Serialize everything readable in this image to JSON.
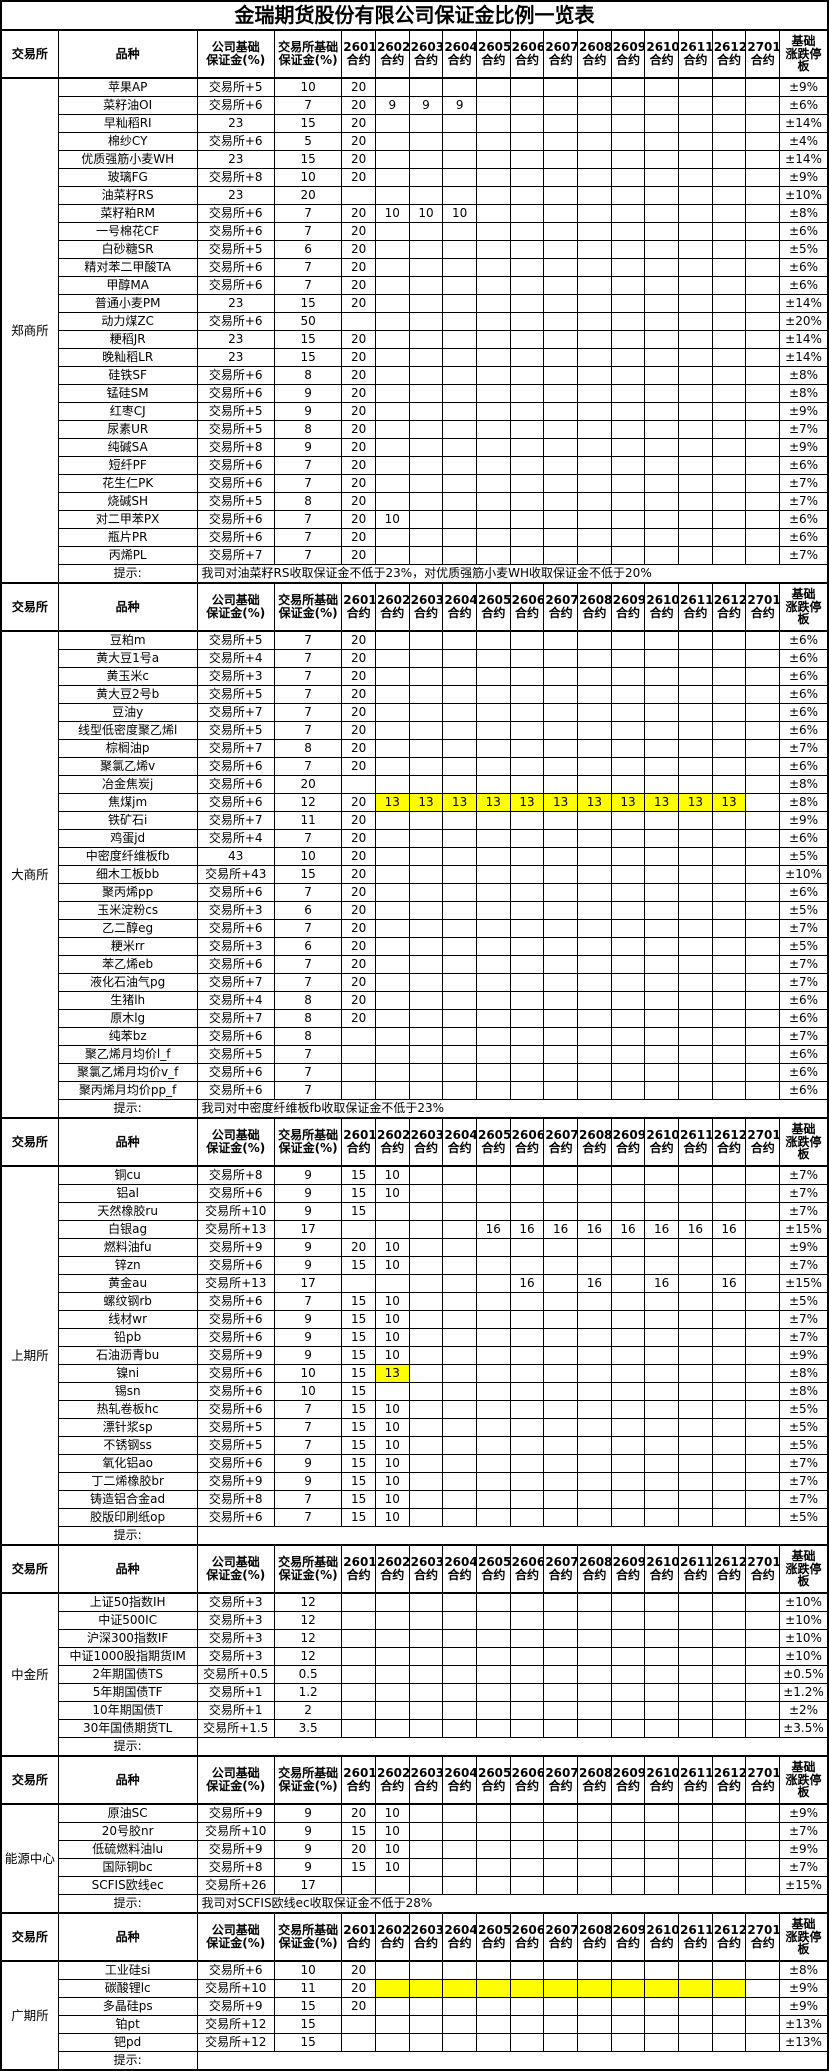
{
  "title": "金瑞期货股份有限公司保证金比例一览表",
  "notice_label": "提示:",
  "colors": {
    "highlight": "#FFFF00",
    "border": "#000000",
    "background": "#FFFFFF"
  },
  "header": {
    "exchange_label": "交易所",
    "product_label": "品种",
    "company_label": "公司基础\n保证金(%)",
    "exchange_base_label": "交易所基础\n保证金(%)",
    "contract_suffix": "合约",
    "limit_label": "基础\n涨跌停板"
  },
  "contracts": [
    "2601",
    "2602",
    "2603",
    "2604",
    "2605",
    "2606",
    "2607",
    "2608",
    "2609",
    "2610",
    "2611",
    "2612",
    "2701"
  ],
  "sections": [
    {
      "exchange": "郑商所",
      "rows": [
        {
          "product": "苹果AP",
          "company": "交易所+5",
          "base": "10",
          "cells": [
            "20"
          ],
          "limit": "±9%"
        },
        {
          "product": "菜籽油OI",
          "company": "交易所+6",
          "base": "7",
          "cells": [
            "20",
            "9",
            "9",
            "9"
          ],
          "limit": "±6%"
        },
        {
          "product": "早籼稻RI",
          "company": "23",
          "base": "15",
          "cells": [
            "20"
          ],
          "limit": "±14%"
        },
        {
          "product": "棉纱CY",
          "company": "交易所+6",
          "base": "5",
          "cells": [
            "20"
          ],
          "limit": "±4%"
        },
        {
          "product": "优质强筋小麦WH",
          "company": "23",
          "base": "15",
          "cells": [
            "20"
          ],
          "limit": "±14%"
        },
        {
          "product": "玻璃FG",
          "company": "交易所+8",
          "base": "10",
          "cells": [
            "20"
          ],
          "limit": "±9%"
        },
        {
          "product": "油菜籽RS",
          "company": "23",
          "base": "20",
          "cells": [],
          "limit": "±10%"
        },
        {
          "product": "菜籽粕RM",
          "company": "交易所+6",
          "base": "7",
          "cells": [
            "20",
            "10",
            "10",
            "10"
          ],
          "limit": "±8%"
        },
        {
          "product": "一号棉花CF",
          "company": "交易所+6",
          "base": "7",
          "cells": [
            "20"
          ],
          "limit": "±6%"
        },
        {
          "product": "白砂糖SR",
          "company": "交易所+5",
          "base": "6",
          "cells": [
            "20"
          ],
          "limit": "±5%"
        },
        {
          "product": "精对苯二甲酸TA",
          "company": "交易所+6",
          "base": "7",
          "cells": [
            "20"
          ],
          "limit": "±6%"
        },
        {
          "product": "甲醇MA",
          "company": "交易所+6",
          "base": "7",
          "cells": [
            "20"
          ],
          "limit": "±6%"
        },
        {
          "product": "普通小麦PM",
          "company": "23",
          "base": "15",
          "cells": [
            "20"
          ],
          "limit": "±14%"
        },
        {
          "product": "动力煤ZC",
          "company": "交易所+6",
          "base": "50",
          "cells": [],
          "limit": "±20%"
        },
        {
          "product": "粳稻JR",
          "company": "23",
          "base": "15",
          "cells": [
            "20"
          ],
          "limit": "±14%"
        },
        {
          "product": "晚籼稻LR",
          "company": "23",
          "base": "15",
          "cells": [
            "20"
          ],
          "limit": "±14%"
        },
        {
          "product": "硅铁SF",
          "company": "交易所+6",
          "base": "8",
          "cells": [
            "20"
          ],
          "limit": "±8%"
        },
        {
          "product": "锰硅SM",
          "company": "交易所+6",
          "base": "9",
          "cells": [
            "20"
          ],
          "limit": "±8%"
        },
        {
          "product": "红枣CJ",
          "company": "交易所+5",
          "base": "9",
          "cells": [
            "20"
          ],
          "limit": "±9%"
        },
        {
          "product": "尿素UR",
          "company": "交易所+5",
          "base": "8",
          "cells": [
            "20"
          ],
          "limit": "±7%"
        },
        {
          "product": "纯碱SA",
          "company": "交易所+8",
          "base": "9",
          "cells": [
            "20"
          ],
          "limit": "±9%"
        },
        {
          "product": "短纤PF",
          "company": "交易所+6",
          "base": "7",
          "cells": [
            "20"
          ],
          "limit": "±6%"
        },
        {
          "product": "花生仁PK",
          "company": "交易所+6",
          "base": "7",
          "cells": [
            "20"
          ],
          "limit": "±7%"
        },
        {
          "product": "烧碱SH",
          "company": "交易所+5",
          "base": "8",
          "cells": [
            "20"
          ],
          "limit": "±7%"
        },
        {
          "product": "对二甲苯PX",
          "company": "交易所+6",
          "base": "7",
          "cells": [
            "20",
            "10"
          ],
          "limit": "±6%"
        },
        {
          "product": "瓶片PR",
          "company": "交易所+6",
          "base": "7",
          "cells": [
            "20"
          ],
          "limit": "±6%"
        },
        {
          "product": "丙烯PL",
          "company": "交易所+7",
          "base": "7",
          "cells": [
            "20"
          ],
          "limit": "±7%"
        }
      ],
      "notice": "我司对油菜籽RS收取保证金不低于23%，对优质强筋小麦WH收取保证金不低于20%"
    },
    {
      "exchange": "大商所",
      "rows": [
        {
          "product": "豆粕m",
          "company": "交易所+5",
          "base": "7",
          "cells": [
            "20"
          ],
          "limit": "±6%"
        },
        {
          "product": "黄大豆1号a",
          "company": "交易所+4",
          "base": "7",
          "cells": [
            "20"
          ],
          "limit": "±6%"
        },
        {
          "product": "黄玉米c",
          "company": "交易所+3",
          "base": "7",
          "cells": [
            "20"
          ],
          "limit": "±6%"
        },
        {
          "product": "黄大豆2号b",
          "company": "交易所+5",
          "base": "7",
          "cells": [
            "20"
          ],
          "limit": "±6%"
        },
        {
          "product": "豆油y",
          "company": "交易所+7",
          "base": "7",
          "cells": [
            "20"
          ],
          "limit": "±6%"
        },
        {
          "product": "线型低密度聚乙烯l",
          "company": "交易所+5",
          "base": "7",
          "cells": [
            "20"
          ],
          "limit": "±6%"
        },
        {
          "product": "棕榈油p",
          "company": "交易所+7",
          "base": "8",
          "cells": [
            "20"
          ],
          "limit": "±7%"
        },
        {
          "product": "聚氯乙烯v",
          "company": "交易所+6",
          "base": "7",
          "cells": [
            "20"
          ],
          "limit": "±6%"
        },
        {
          "product": "冶金焦炭j",
          "company": "交易所+6",
          "base": "20",
          "cells": [],
          "limit": "±8%"
        },
        {
          "product": "焦煤jm",
          "company": "交易所+6",
          "base": "12",
          "cells": [
            "20",
            "13",
            "13",
            "13",
            "13",
            "13",
            "13",
            "13",
            "13",
            "13",
            "13",
            "13"
          ],
          "yellow": [
            1,
            2,
            3,
            4,
            5,
            6,
            7,
            8,
            9,
            10,
            11
          ],
          "limit": "±8%"
        },
        {
          "product": "铁矿石i",
          "company": "交易所+7",
          "base": "11",
          "cells": [
            "20"
          ],
          "limit": "±9%"
        },
        {
          "product": "鸡蛋jd",
          "company": "交易所+4",
          "base": "7",
          "cells": [
            "20"
          ],
          "limit": "±6%"
        },
        {
          "product": "中密度纤维板fb",
          "company": "43",
          "base": "10",
          "cells": [
            "20"
          ],
          "limit": "±5%"
        },
        {
          "product": "细木工板bb",
          "company": "交易所+43",
          "base": "15",
          "cells": [
            "20"
          ],
          "limit": "±10%"
        },
        {
          "product": "聚丙烯pp",
          "company": "交易所+6",
          "base": "7",
          "cells": [
            "20"
          ],
          "limit": "±6%"
        },
        {
          "product": "玉米淀粉cs",
          "company": "交易所+3",
          "base": "6",
          "cells": [
            "20"
          ],
          "limit": "±5%"
        },
        {
          "product": "乙二醇eg",
          "company": "交易所+6",
          "base": "7",
          "cells": [
            "20"
          ],
          "limit": "±7%"
        },
        {
          "product": "粳米rr",
          "company": "交易所+3",
          "base": "6",
          "cells": [
            "20"
          ],
          "limit": "±5%"
        },
        {
          "product": "苯乙烯eb",
          "company": "交易所+6",
          "base": "7",
          "cells": [
            "20"
          ],
          "limit": "±7%"
        },
        {
          "product": "液化石油气pg",
          "company": "交易所+7",
          "base": "7",
          "cells": [
            "20"
          ],
          "limit": "±7%"
        },
        {
          "product": "生猪lh",
          "company": "交易所+4",
          "base": "8",
          "cells": [
            "20"
          ],
          "limit": "±6%"
        },
        {
          "product": "原木lg",
          "company": "交易所+7",
          "base": "8",
          "cells": [
            "20"
          ],
          "limit": "±6%"
        },
        {
          "product": "纯苯bz",
          "company": "交易所+6",
          "base": "8",
          "cells": [],
          "limit": "±7%"
        },
        {
          "product": "聚乙烯月均价l_f",
          "company": "交易所+5",
          "base": "7",
          "cells": [],
          "limit": "±6%"
        },
        {
          "product": "聚氯乙烯月均价v_f",
          "company": "交易所+6",
          "base": "7",
          "cells": [],
          "limit": "±6%"
        },
        {
          "product": "聚丙烯月均价pp_f",
          "company": "交易所+6",
          "base": "7",
          "cells": [],
          "limit": "±6%"
        }
      ],
      "notice": "我司对中密度纤维板fb收取保证金不低于23%"
    },
    {
      "exchange": "上期所",
      "rows": [
        {
          "product": "铜cu",
          "company": "交易所+8",
          "base": "9",
          "cells": [
            "15",
            "10"
          ],
          "limit": "±7%"
        },
        {
          "product": "铝al",
          "company": "交易所+6",
          "base": "9",
          "cells": [
            "15",
            "10"
          ],
          "limit": "±7%"
        },
        {
          "product": "天然橡胶ru",
          "company": "交易所+10",
          "base": "9",
          "cells": [
            "15"
          ],
          "limit": "±7%"
        },
        {
          "product": "白银ag",
          "company": "交易所+13",
          "base": "17",
          "cells": [
            "",
            "",
            "",
            "",
            "16",
            "16",
            "16",
            "16",
            "16",
            "16",
            "16",
            "16"
          ],
          "limit": "±15%"
        },
        {
          "product": "燃料油fu",
          "company": "交易所+9",
          "base": "9",
          "cells": [
            "20",
            "10"
          ],
          "limit": "±9%"
        },
        {
          "product": "锌zn",
          "company": "交易所+6",
          "base": "9",
          "cells": [
            "15",
            "10"
          ],
          "limit": "±7%"
        },
        {
          "product": "黄金au",
          "company": "交易所+13",
          "base": "17",
          "cells": [
            "",
            "",
            "",
            "",
            "",
            "16",
            "",
            "16",
            "",
            "16",
            "",
            "16"
          ],
          "limit": "±15%"
        },
        {
          "product": "螺纹钢rb",
          "company": "交易所+6",
          "base": "7",
          "cells": [
            "15",
            "10"
          ],
          "limit": "±5%"
        },
        {
          "product": "线材wr",
          "company": "交易所+6",
          "base": "9",
          "cells": [
            "15",
            "10"
          ],
          "limit": "±7%"
        },
        {
          "product": "铅pb",
          "company": "交易所+6",
          "base": "9",
          "cells": [
            "15",
            "10"
          ],
          "limit": "±7%"
        },
        {
          "product": "石油沥青bu",
          "company": "交易所+9",
          "base": "9",
          "cells": [
            "15",
            "10"
          ],
          "limit": "±9%"
        },
        {
          "product": "镍ni",
          "company": "交易所+6",
          "base": "10",
          "cells": [
            "15",
            "13"
          ],
          "yellow": [
            1
          ],
          "limit": "±8%"
        },
        {
          "product": "锡sn",
          "company": "交易所+6",
          "base": "10",
          "cells": [
            "15"
          ],
          "limit": "±8%"
        },
        {
          "product": "热轧卷板hc",
          "company": "交易所+6",
          "base": "7",
          "cells": [
            "15",
            "10"
          ],
          "limit": "±5%"
        },
        {
          "product": "漂针浆sp",
          "company": "交易所+5",
          "base": "7",
          "cells": [
            "15",
            "10"
          ],
          "limit": "±5%"
        },
        {
          "product": "不锈钢ss",
          "company": "交易所+5",
          "base": "7",
          "cells": [
            "15",
            "10"
          ],
          "limit": "±5%"
        },
        {
          "product": "氧化铝ao",
          "company": "交易所+6",
          "base": "9",
          "cells": [
            "15",
            "10"
          ],
          "limit": "±7%"
        },
        {
          "product": "丁二烯橡胶br",
          "company": "交易所+9",
          "base": "9",
          "cells": [
            "15",
            "10"
          ],
          "limit": "±7%"
        },
        {
          "product": "铸造铝合金ad",
          "company": "交易所+8",
          "base": "7",
          "cells": [
            "15",
            "10"
          ],
          "limit": "±7%"
        },
        {
          "product": "胶版印刷纸op",
          "company": "交易所+6",
          "base": "7",
          "cells": [
            "15",
            "10"
          ],
          "limit": "±5%"
        }
      ],
      "notice": ""
    },
    {
      "exchange": "中金所",
      "rows": [
        {
          "product": "上证50指数IH",
          "company": "交易所+3",
          "base": "12",
          "cells": [],
          "limit": "±10%"
        },
        {
          "product": "中证500IC",
          "company": "交易所+3",
          "base": "12",
          "cells": [],
          "limit": "±10%"
        },
        {
          "product": "沪深300指数IF",
          "company": "交易所+3",
          "base": "12",
          "cells": [],
          "limit": "±10%"
        },
        {
          "product": "中证1000股指期货IM",
          "company": "交易所+3",
          "base": "12",
          "cells": [],
          "limit": "±10%"
        },
        {
          "product": "2年期国债TS",
          "company": "交易所+0.5",
          "base": "0.5",
          "cells": [],
          "limit": "±0.5%"
        },
        {
          "product": "5年期国债TF",
          "company": "交易所+1",
          "base": "1.2",
          "cells": [],
          "limit": "±1.2%"
        },
        {
          "product": "10年期国债T",
          "company": "交易所+1",
          "base": "2",
          "cells": [],
          "limit": "±2%"
        },
        {
          "product": "30年国债期货TL",
          "company": "交易所+1.5",
          "base": "3.5",
          "cells": [],
          "limit": "±3.5%"
        }
      ],
      "notice": ""
    },
    {
      "exchange": "能源中心",
      "rows": [
        {
          "product": "原油SC",
          "company": "交易所+9",
          "base": "9",
          "cells": [
            "20",
            "10"
          ],
          "limit": "±9%"
        },
        {
          "product": "20号胶nr",
          "company": "交易所+10",
          "base": "9",
          "cells": [
            "15",
            "10"
          ],
          "limit": "±7%"
        },
        {
          "product": "低硫燃料油lu",
          "company": "交易所+9",
          "base": "9",
          "cells": [
            "20",
            "10"
          ],
          "limit": "±9%"
        },
        {
          "product": "国际铜bc",
          "company": "交易所+8",
          "base": "9",
          "cells": [
            "15",
            "10"
          ],
          "limit": "±7%"
        },
        {
          "product": "SCFIS欧线ec",
          "company": "交易所+26",
          "base": "17",
          "cells": [],
          "limit": "±15%"
        }
      ],
      "notice": "我司对SCFIS欧线ec收取保证金不低于28%"
    },
    {
      "exchange": "广期所",
      "rows": [
        {
          "product": "工业硅si",
          "company": "交易所+6",
          "base": "10",
          "cells": [
            "20"
          ],
          "limit": "±8%"
        },
        {
          "product": "碳酸锂lc",
          "company": "交易所+10",
          "base": "11",
          "cells": [
            "20"
          ],
          "yellow": [
            1,
            2,
            3,
            4,
            5,
            6,
            7,
            8,
            9,
            10,
            11
          ],
          "limit": "±9%"
        },
        {
          "product": "多晶硅ps",
          "company": "交易所+9",
          "base": "15",
          "cells": [
            "20"
          ],
          "limit": "±9%"
        },
        {
          "product": "铂pt",
          "company": "交易所+12",
          "base": "15",
          "cells": [],
          "limit": "±13%"
        },
        {
          "product": "钯pd",
          "company": "交易所+12",
          "base": "15",
          "cells": [],
          "limit": "±13%"
        }
      ],
      "notice": ""
    }
  ]
}
